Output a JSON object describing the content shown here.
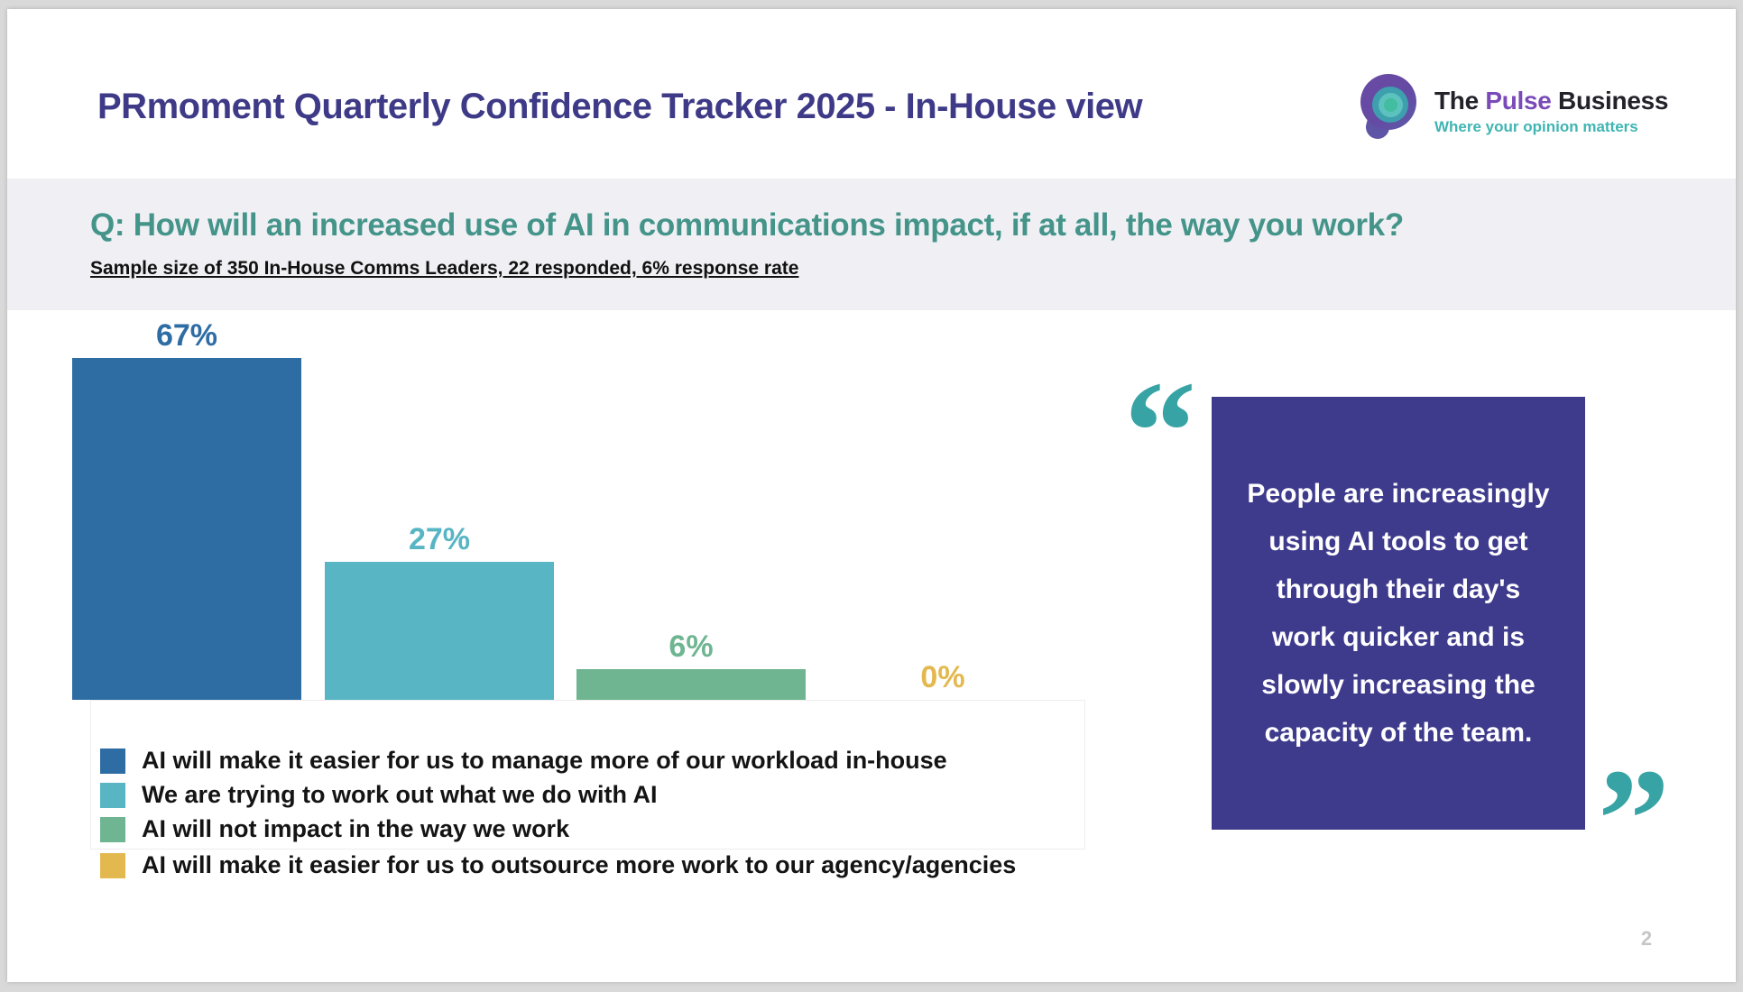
{
  "slide": {
    "title": "PRmoment Quarterly Confidence Tracker 2025 - In-House view",
    "page_number": "2"
  },
  "logo": {
    "brand_the": "The ",
    "brand_pulse": "Pulse",
    "brand_business": " Business",
    "tagline": "Where your opinion matters",
    "colors": {
      "brand_dark": "#232129",
      "brand_accent": "#7A4AB8",
      "tagline": "#3FB5B2",
      "mark_purple": "#654AA3",
      "mark_teal": "#3E9FAE"
    }
  },
  "question": {
    "text": "Q: How will an increased use of AI in communications impact, if at all, the way you work?",
    "sample_note": "Sample size of 350 In-House Comms Leaders, 22 responded, 6% response rate",
    "color": "#44948A"
  },
  "chart_data": {
    "type": "bar",
    "title": "",
    "xlabel": "",
    "ylabel": "",
    "categories": [
      "AI will make it easier for us to manage more of our workload in-house",
      "We are trying to work out what we do with AI",
      "AI will not impact in the way we work",
      "AI will make it easier for us to outsource more work to our agency/agencies"
    ],
    "values": [
      67,
      27,
      6,
      0
    ],
    "value_labels": [
      "67%",
      "27%",
      "6%",
      "0%"
    ],
    "colors": [
      "#2E6CA4",
      "#57B5C4",
      "#6FB591",
      "#E3B94F"
    ],
    "ylim": [
      0,
      70
    ],
    "grid": false,
    "legend_position": "bottom-left"
  },
  "quote": {
    "text": "People are increasingly using AI tools to get through their day's work quicker and is slowly increasing the capacity of the team.",
    "open_glyph": "“",
    "close_glyph": "”",
    "box_color": "#3E3A8C",
    "mark_color": "#37A3A4"
  },
  "colors": {
    "title": "#3E3A87",
    "band_background": "#F0F0F4",
    "frame_background": "#D9D9D9",
    "page_number": "#C6C6C6"
  }
}
